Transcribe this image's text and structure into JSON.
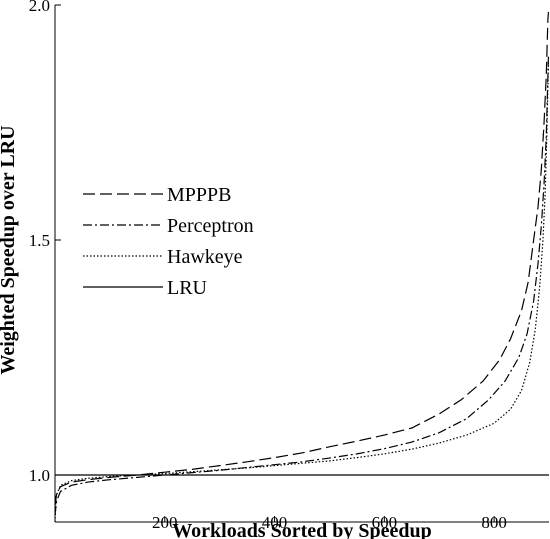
{
  "chart_data": {
    "type": "line",
    "title": "",
    "xlabel": "Workloads Sorted by Speedup",
    "ylabel": "Weighted Speedup over LRU",
    "xlim": [
      0,
      900
    ],
    "ylim": [
      0.9,
      2.0
    ],
    "x_ticks": [
      200,
      400,
      600,
      800
    ],
    "x_tick_labels": [
      "200",
      "400",
      "600",
      "800"
    ],
    "y_ticks": [
      1.0,
      1.5,
      2.0
    ],
    "y_tick_labels": [
      "1.0",
      "1.5",
      "2.0"
    ],
    "grid": false,
    "legend_position": "center-left",
    "series": [
      {
        "name": "MPPPB",
        "style": "long-dash",
        "points": [
          [
            0,
            0.935
          ],
          [
            3,
            0.96
          ],
          [
            10,
            0.975
          ],
          [
            30,
            0.985
          ],
          [
            60,
            0.99
          ],
          [
            100,
            0.995
          ],
          [
            150,
            1.0
          ],
          [
            200,
            1.006
          ],
          [
            250,
            1.012
          ],
          [
            300,
            1.02
          ],
          [
            350,
            1.028
          ],
          [
            400,
            1.037
          ],
          [
            450,
            1.047
          ],
          [
            500,
            1.06
          ],
          [
            550,
            1.072
          ],
          [
            600,
            1.085
          ],
          [
            650,
            1.1
          ],
          [
            700,
            1.13
          ],
          [
            740,
            1.16
          ],
          [
            780,
            1.2
          ],
          [
            810,
            1.245
          ],
          [
            830,
            1.29
          ],
          [
            850,
            1.35
          ],
          [
            862,
            1.41
          ],
          [
            872,
            1.5
          ],
          [
            880,
            1.57
          ],
          [
            886,
            1.65
          ],
          [
            891,
            1.75
          ],
          [
            895,
            1.85
          ],
          [
            898,
            1.97
          ],
          [
            899,
            1.985
          ]
        ]
      },
      {
        "name": "Perceptron",
        "style": "dash-dot",
        "points": [
          [
            0,
            0.915
          ],
          [
            3,
            0.945
          ],
          [
            10,
            0.965
          ],
          [
            30,
            0.978
          ],
          [
            60,
            0.985
          ],
          [
            100,
            0.99
          ],
          [
            150,
            0.995
          ],
          [
            200,
            1.0
          ],
          [
            250,
            1.005
          ],
          [
            300,
            1.01
          ],
          [
            350,
            1.016
          ],
          [
            400,
            1.022
          ],
          [
            450,
            1.028
          ],
          [
            500,
            1.036
          ],
          [
            550,
            1.045
          ],
          [
            600,
            1.056
          ],
          [
            650,
            1.07
          ],
          [
            700,
            1.09
          ],
          [
            750,
            1.12
          ],
          [
            790,
            1.16
          ],
          [
            820,
            1.2
          ],
          [
            845,
            1.25
          ],
          [
            860,
            1.3
          ],
          [
            872,
            1.37
          ],
          [
            880,
            1.45
          ],
          [
            886,
            1.53
          ],
          [
            891,
            1.62
          ],
          [
            895,
            1.72
          ],
          [
            898,
            1.85
          ],
          [
            899,
            1.89
          ]
        ]
      },
      {
        "name": "Hawkeye",
        "style": "dotted",
        "points": [
          [
            0,
            0.9
          ],
          [
            2,
            0.955
          ],
          [
            10,
            0.978
          ],
          [
            30,
            0.988
          ],
          [
            60,
            0.993
          ],
          [
            100,
            0.997
          ],
          [
            150,
            1.0
          ],
          [
            200,
            1.003
          ],
          [
            250,
            1.007
          ],
          [
            300,
            1.011
          ],
          [
            350,
            1.015
          ],
          [
            400,
            1.02
          ],
          [
            450,
            1.025
          ],
          [
            500,
            1.03
          ],
          [
            550,
            1.037
          ],
          [
            600,
            1.045
          ],
          [
            650,
            1.055
          ],
          [
            700,
            1.068
          ],
          [
            750,
            1.085
          ],
          [
            800,
            1.11
          ],
          [
            830,
            1.14
          ],
          [
            850,
            1.18
          ],
          [
            865,
            1.24
          ],
          [
            875,
            1.31
          ],
          [
            883,
            1.4
          ],
          [
            889,
            1.5
          ],
          [
            893,
            1.6
          ],
          [
            896,
            1.72
          ],
          [
            898,
            1.83
          ],
          [
            899,
            1.88
          ]
        ]
      },
      {
        "name": "LRU",
        "style": "solid",
        "points": [
          [
            0,
            1.0
          ],
          [
            900,
            1.0
          ]
        ]
      }
    ]
  }
}
